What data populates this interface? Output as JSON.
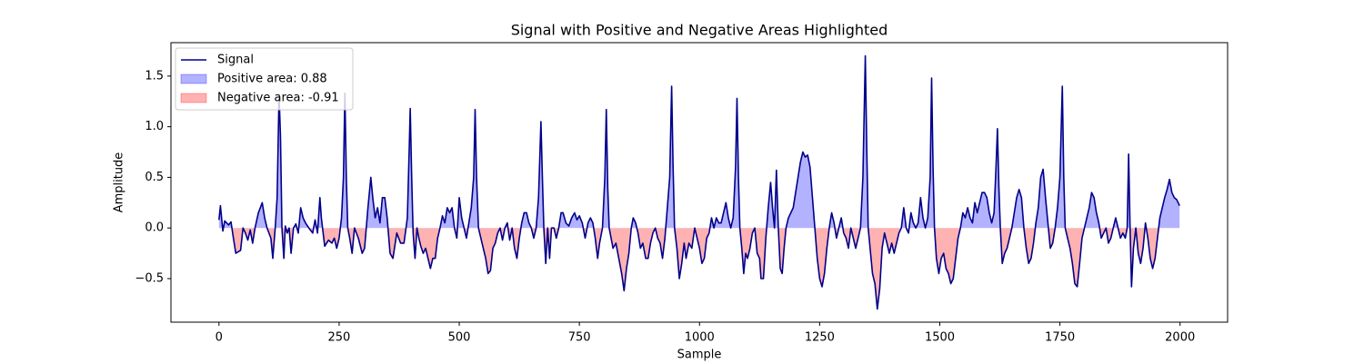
{
  "chart_data": {
    "type": "line",
    "title": "Signal with Positive and Negative Areas Highlighted",
    "xlabel": "Sample",
    "ylabel": "Amplitude",
    "xlim": [
      -99.95,
      2098.95
    ],
    "ylim": [
      -0.93,
      1.83
    ],
    "xticks": [
      0,
      250,
      500,
      750,
      1000,
      1250,
      1500,
      1750,
      2000
    ],
    "yticks": [
      {
        "value": -0.5,
        "label": "−0.5"
      },
      {
        "value": 0,
        "label": "0.0"
      },
      0.5,
      {
        "value": 1,
        "label": "1.0"
      },
      1.5
    ],
    "legend": "upper left",
    "fill_alpha": 0.3,
    "x": [
      0,
      3,
      8,
      12,
      20,
      25,
      30,
      35,
      45,
      50,
      55,
      60,
      65,
      70,
      75,
      82,
      90,
      95,
      100,
      108,
      112,
      117,
      121,
      125,
      128,
      131,
      135,
      138,
      142,
      146,
      150,
      155,
      160,
      165,
      170,
      175,
      180,
      187,
      195,
      200,
      205,
      210,
      213,
      220,
      228,
      235,
      240,
      245,
      250,
      255,
      259,
      262,
      265,
      268,
      272,
      277,
      282,
      290,
      298,
      303,
      310,
      316,
      320,
      325,
      330,
      335,
      340,
      345,
      350,
      356,
      362,
      370,
      378,
      385,
      392,
      396,
      398,
      401,
      404,
      408,
      412,
      416,
      420,
      425,
      430,
      435,
      440,
      445,
      450,
      455,
      460,
      465,
      470,
      475,
      480,
      485,
      490,
      495,
      500,
      505,
      510,
      515,
      520,
      525,
      530,
      533,
      536,
      540,
      545,
      550,
      555,
      560,
      565,
      570,
      575,
      580,
      585,
      590,
      595,
      600,
      605,
      610,
      615,
      620,
      625,
      630,
      635,
      640,
      645,
      650,
      655,
      660,
      665,
      670,
      673,
      676,
      680,
      684,
      688,
      692,
      697,
      702,
      707,
      712,
      716,
      722,
      728,
      734,
      740,
      745,
      750,
      756,
      762,
      768,
      773,
      778,
      783,
      788,
      792,
      798,
      803,
      806,
      809,
      812,
      816,
      820,
      826,
      832,
      838,
      843,
      848,
      853,
      858,
      862,
      867,
      872,
      877,
      882,
      888,
      893,
      898,
      903,
      908,
      913,
      918,
      923,
      928,
      933,
      938,
      942,
      945,
      948,
      953,
      958,
      963,
      968,
      972,
      978,
      984,
      990,
      995,
      1000,
      1005,
      1010,
      1015,
      1020,
      1025,
      1030,
      1035,
      1040,
      1045,
      1050,
      1055,
      1060,
      1065,
      1070,
      1075,
      1078,
      1081,
      1084,
      1088,
      1092,
      1096,
      1100,
      1105,
      1110,
      1115,
      1120,
      1125,
      1128,
      1133,
      1138,
      1143,
      1148,
      1152,
      1156,
      1160,
      1164,
      1168,
      1172,
      1176,
      1180,
      1185,
      1190,
      1195,
      1200,
      1205,
      1210,
      1215,
      1220,
      1225,
      1230,
      1235,
      1240,
      1245,
      1250,
      1255,
      1260,
      1265,
      1270,
      1275,
      1280,
      1285,
      1290,
      1295,
      1300,
      1305,
      1310,
      1315,
      1320,
      1325,
      1330,
      1335,
      1340,
      1345,
      1348,
      1351,
      1355,
      1360,
      1365,
      1370,
      1375,
      1380,
      1385,
      1390,
      1395,
      1400,
      1405,
      1410,
      1415,
      1420,
      1425,
      1430,
      1435,
      1440,
      1445,
      1450,
      1455,
      1460,
      1465,
      1470,
      1475,
      1480,
      1483,
      1486,
      1489,
      1493,
      1498,
      1503,
      1508,
      1513,
      1518,
      1523,
      1528,
      1533,
      1538,
      1543,
      1548,
      1553,
      1558,
      1563,
      1568,
      1573,
      1578,
      1583,
      1588,
      1593,
      1598,
      1603,
      1608,
      1613,
      1617,
      1620,
      1623,
      1626,
      1630,
      1635,
      1640,
      1645,
      1650,
      1655,
      1660,
      1665,
      1670,
      1675,
      1680,
      1685,
      1690,
      1695,
      1700,
      1705,
      1710,
      1715,
      1720,
      1725,
      1730,
      1735,
      1740,
      1745,
      1750,
      1755,
      1758,
      1761,
      1766,
      1771,
      1776,
      1781,
      1786,
      1791,
      1796,
      1801,
      1806,
      1811,
      1816,
      1821,
      1826,
      1831,
      1836,
      1841,
      1846,
      1851,
      1856,
      1861,
      1866,
      1871,
      1876,
      1881,
      1886,
      1890,
      1893,
      1896,
      1899,
      1903,
      1908,
      1913,
      1918,
      1923,
      1928,
      1933,
      1938,
      1943,
      1948,
      1953,
      1958,
      1963,
      1968,
      1973,
      1978,
      1983,
      1988,
      1993,
      1999
    ],
    "series": [
      {
        "name": "Signal",
        "color": "#00008b",
        "values": [
          0.08,
          0.22,
          -0.03,
          0.07,
          0.03,
          0.06,
          -0.1,
          -0.25,
          -0.22,
          0,
          -0.05,
          -0.12,
          -0.02,
          -0.15,
          0,
          0.15,
          0.25,
          0.1,
          0,
          -0.1,
          -0.3,
          0,
          0.3,
          1.32,
          0.9,
          0,
          -0.3,
          0.02,
          -0.05,
          0,
          -0.25,
          0,
          0.04,
          -0.05,
          0.2,
          0.1,
          0.05,
          0,
          -0.05,
          0.08,
          -0.05,
          0.3,
          0.1,
          -0.18,
          -0.12,
          -0.15,
          -0.1,
          -0.2,
          -0.1,
          0.1,
          0.5,
          1.33,
          0.5,
          0,
          -0.1,
          -0.25,
          0,
          -0.1,
          -0.25,
          -0.2,
          0.2,
          0.5,
          0.3,
          0.1,
          0.2,
          0.05,
          0.3,
          0.3,
          0.1,
          -0.25,
          -0.3,
          -0.05,
          -0.15,
          -0.15,
          0.1,
          0.8,
          1.18,
          0.5,
          -0.05,
          -0.3,
          0,
          -0.1,
          -0.18,
          -0.25,
          -0.2,
          -0.3,
          -0.4,
          -0.3,
          -0.3,
          -0.1,
          0,
          0.12,
          0.05,
          0.2,
          0.15,
          0.2,
          0,
          -0.1,
          0.3,
          0.1,
          0,
          -0.1,
          0.05,
          0.2,
          0.5,
          1.17,
          0.5,
          0,
          -0.1,
          -0.2,
          -0.3,
          -0.45,
          -0.42,
          -0.2,
          -0.15,
          -0.05,
          0,
          -0.12,
          0,
          0.05,
          -0.12,
          0,
          -0.2,
          -0.3,
          -0.1,
          0.05,
          0.15,
          0.15,
          0.05,
          0,
          -0.1,
          0,
          0.3,
          1.05,
          0.5,
          0,
          -0.35,
          0,
          -0.3,
          0,
          0,
          -0.1,
          0,
          0.15,
          0.15,
          0.05,
          0.02,
          0.1,
          0.15,
          0.08,
          0.12,
          0.05,
          -0.1,
          0.05,
          0.1,
          0.05,
          -0.1,
          -0.3,
          -0.15,
          0,
          0.5,
          1.17,
          0.4,
          0,
          -0.1,
          -0.2,
          -0.15,
          -0.3,
          -0.45,
          -0.62,
          -0.4,
          -0.25,
          0,
          0.1,
          0.05,
          -0.05,
          -0.2,
          -0.15,
          -0.3,
          -0.3,
          -0.15,
          -0.05,
          0,
          -0.1,
          -0.15,
          -0.3,
          -0.1,
          0.2,
          0.5,
          1.4,
          0.6,
          0,
          -0.2,
          -0.5,
          -0.35,
          -0.15,
          -0.3,
          -0.15,
          -0.2,
          0,
          -0.1,
          -0.2,
          -0.35,
          -0.3,
          -0.1,
          -0.05,
          0.1,
          0,
          0.1,
          0.05,
          0.05,
          0.15,
          0.25,
          0.1,
          0,
          0.1,
          0.6,
          1.28,
          0.5,
          0,
          -0.2,
          -0.45,
          -0.25,
          -0.3,
          -0.2,
          -0.05,
          0,
          -0.25,
          -0.3,
          -0.5,
          -0.5,
          -0.1,
          0.2,
          0.45,
          0.2,
          0,
          0.57,
          0,
          -0.4,
          -0.45,
          -0.2,
          0,
          0.1,
          0.15,
          0.2,
          0.35,
          0.5,
          0.65,
          0.75,
          0.7,
          0.72,
          0.6,
          0.3,
          0,
          -0.3,
          -0.5,
          -0.58,
          -0.45,
          -0.2,
          0,
          0.15,
          0.05,
          -0.1,
          0,
          0.1,
          -0.05,
          -0.1,
          -0.2,
          0,
          -0.1,
          -0.2,
          -0.1,
          0,
          0.5,
          1.7,
          0.8,
          0,
          -0.2,
          -0.45,
          -0.55,
          -0.8,
          -0.6,
          -0.2,
          -0.05,
          -0.15,
          -0.25,
          -0.15,
          -0.25,
          -0.15,
          -0.05,
          0,
          0.2,
          0,
          -0.05,
          0.15,
          0.05,
          0,
          0.05,
          0.3,
          0.1,
          0,
          0.1,
          0.5,
          1.48,
          0.6,
          0,
          -0.3,
          -0.45,
          -0.3,
          -0.25,
          -0.4,
          -0.45,
          -0.55,
          -0.5,
          -0.3,
          -0.1,
          0,
          0.15,
          0.1,
          0.2,
          0.1,
          0.05,
          0.25,
          0.15,
          0.25,
          0.35,
          0.35,
          0.3,
          0.15,
          0.05,
          0.15,
          0.6,
          0.98,
          0.4,
          0,
          -0.35,
          -0.25,
          -0.2,
          -0.1,
          0,
          0.15,
          0.3,
          0.38,
          0.3,
          0,
          -0.2,
          -0.35,
          -0.3,
          -0.15,
          0.05,
          0.2,
          0.5,
          0.58,
          0.3,
          0.05,
          -0.2,
          -0.15,
          0,
          0.2,
          0.5,
          1.4,
          0.5,
          0,
          -0.1,
          -0.2,
          -0.35,
          -0.55,
          -0.58,
          -0.35,
          -0.1,
          0,
          0.1,
          0.2,
          0.35,
          0.3,
          0.15,
          0.05,
          -0.1,
          -0.05,
          0,
          -0.15,
          -0.1,
          0,
          0.1,
          0,
          -0.1,
          -0.05,
          -0.1,
          0,
          0.73,
          0,
          -0.58,
          -0.2,
          0,
          -0.25,
          -0.35,
          -0.2,
          0.05,
          -0.1,
          -0.3,
          -0.4,
          -0.3,
          -0.1,
          0.1,
          0.2,
          0.3,
          0.38,
          0.48,
          0.35,
          0.3,
          0.28,
          0.22
        ]
      }
    ],
    "fills": [
      {
        "name": "Positive area: 0.88",
        "color": "#0000ff",
        "side": "positive"
      },
      {
        "name": "Negative area: -0.91",
        "color": "#ff0000",
        "side": "negative"
      }
    ]
  }
}
